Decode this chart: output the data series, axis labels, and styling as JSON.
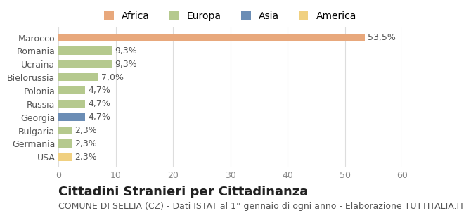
{
  "categories": [
    "Marocco",
    "Romania",
    "Ucraina",
    "Bielorussia",
    "Polonia",
    "Russia",
    "Georgia",
    "Bulgaria",
    "Germania",
    "USA"
  ],
  "values": [
    53.5,
    9.3,
    9.3,
    7.0,
    4.7,
    4.7,
    4.7,
    2.3,
    2.3,
    2.3
  ],
  "labels": [
    "53,5%",
    "9,3%",
    "9,3%",
    "7,0%",
    "4,7%",
    "4,7%",
    "4,7%",
    "2,3%",
    "2,3%",
    "2,3%"
  ],
  "colors": [
    "#E8A87C",
    "#B5C98E",
    "#B5C98E",
    "#B5C98E",
    "#B5C98E",
    "#B5C98E",
    "#6B8DB5",
    "#B5C98E",
    "#B5C98E",
    "#F0D080"
  ],
  "legend_labels": [
    "Africa",
    "Europa",
    "Asia",
    "America"
  ],
  "legend_colors": [
    "#E8A87C",
    "#B5C98E",
    "#6B8DB5",
    "#F0D080"
  ],
  "title": "Cittadini Stranieri per Cittadinanza",
  "subtitle": "COMUNE DI SELLIA (CZ) - Dati ISTAT al 1° gennaio di ogni anno - Elaborazione TUTTITALIA.IT",
  "xlim": [
    0,
    60
  ],
  "xticks": [
    0,
    10,
    20,
    30,
    40,
    50,
    60
  ],
  "background_color": "#ffffff",
  "grid_color": "#dddddd",
  "title_fontsize": 13,
  "subtitle_fontsize": 9,
  "label_fontsize": 9,
  "tick_fontsize": 9
}
